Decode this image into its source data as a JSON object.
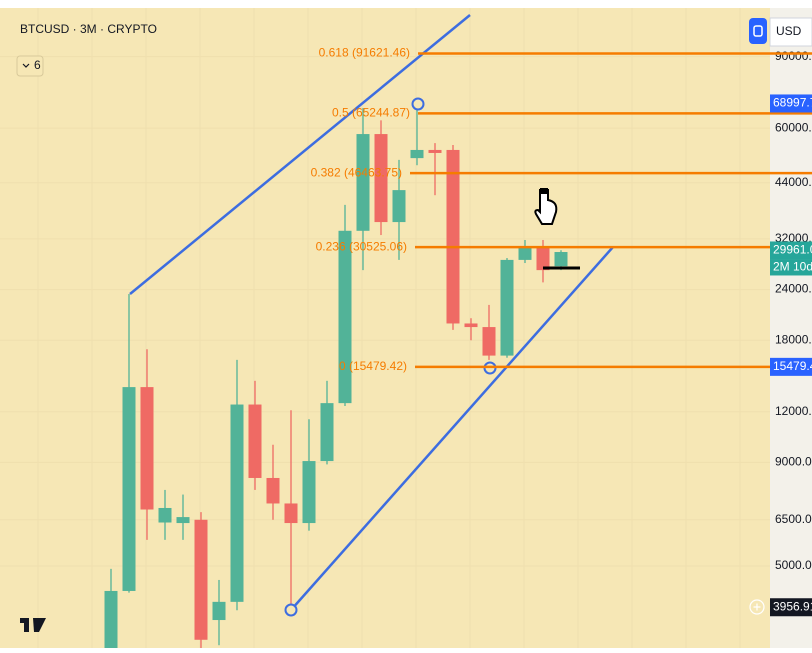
{
  "chart_data": {
    "type": "candlestick",
    "title": "BTCUSD · 3M · CRYPTO",
    "indicator_count": "6",
    "currency": "USD",
    "log_scale": true,
    "up_color": "#52b398",
    "down_color": "#ef6a64",
    "open": [
      3050,
      4340,
      13800,
      6400,
      6380,
      6500,
      3680,
      4080,
      12500,
      8240,
      7130,
      6380,
      9070,
      12600,
      33500,
      58000,
      35200,
      50600,
      53000,
      53000,
      19800,
      19400,
      16500,
      28400,
      30400,
      27400
    ],
    "high": [
      4920,
      23400,
      17100,
      7700,
      7500,
      6790,
      4620,
      16100,
      14300,
      9950,
      12100,
      11500,
      14300,
      38800,
      67200,
      62700,
      50100,
      68800,
      55100,
      54500,
      20400,
      22000,
      28700,
      31800,
      31800,
      30000
    ],
    "low": [
      3000,
      4300,
      5800,
      5800,
      5800,
      3000,
      3190,
      3890,
      7700,
      6500,
      3980,
      6110,
      8900,
      12400,
      26800,
      32700,
      28400,
      48600,
      41000,
      19100,
      18000,
      16100,
      16300,
      27900,
      25000,
      26800
    ],
    "close": [
      4340,
      13800,
      6890,
      6950,
      6600,
      3290,
      4080,
      12500,
      8240,
      7130,
      6380,
      9070,
      12600,
      33500,
      58000,
      35200,
      42200,
      53000,
      52100,
      19800,
      19400,
      16500,
      28400,
      30400,
      26800,
      29700
    ],
    "ylim": [
      3140,
      118600
    ],
    "yticks": [
      {
        "value": 90000,
        "label": "90000.00"
      },
      {
        "value": 60000,
        "label": "60000.00"
      },
      {
        "value": 44000,
        "label": "44000.00"
      },
      {
        "value": 32000,
        "label": "32000.00"
      },
      {
        "value": 24000,
        "label": "24000.00"
      },
      {
        "value": 18000,
        "label": "18000.00"
      },
      {
        "value": 12000,
        "label": "12000.00"
      },
      {
        "value": 9000,
        "label": "9000.00"
      },
      {
        "value": 6500,
        "label": "6500.00"
      },
      {
        "value": 5000,
        "label": "5000.00"
      }
    ],
    "fib_levels": [
      {
        "label": "0.618 (91621.46)",
        "value": 91621.46
      },
      {
        "label": "0.5 (65244.87)",
        "value": 65244.87
      },
      {
        "label": "0.382 (46463.75)",
        "value": 46463.75
      },
      {
        "label": "0.236 (30525.06)",
        "value": 30525.06
      },
      {
        "label": "0 (15479.42)",
        "value": 15479.42
      }
    ],
    "fib_color": "#f57c00",
    "price_labels": [
      {
        "value": 68997.79,
        "color": "#2962ff"
      },
      {
        "value": 29961.07,
        "color": "#26a69a",
        "note": "2M 10d"
      },
      {
        "value": 15479.42,
        "color": "#2962ff"
      },
      {
        "value": 3956.91,
        "color": "#131722"
      }
    ]
  }
}
